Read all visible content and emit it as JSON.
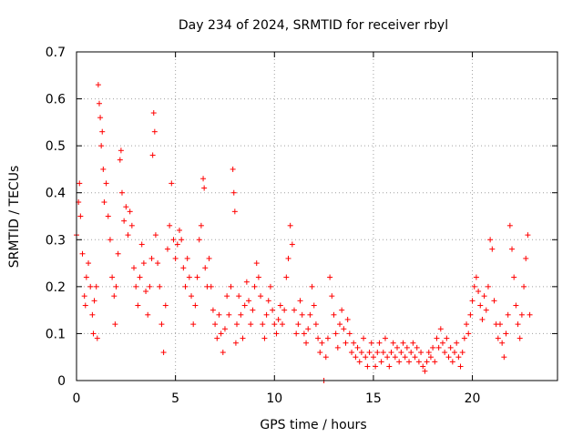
{
  "chart_data": {
    "type": "scatter",
    "title": "Day 234 of 2024, SRMTID for receiver rbyl",
    "xlabel": "GPS time / hours",
    "ylabel": "SRMTID / TECUs",
    "xlim": [
      0,
      24.3
    ],
    "ylim": [
      0,
      0.7
    ],
    "xticks": [
      0,
      5,
      10,
      15,
      20
    ],
    "xtick_labels": [
      "0",
      "5",
      "10",
      "15",
      "20"
    ],
    "yticks": [
      0,
      0.1,
      0.2,
      0.3,
      0.4,
      0.5,
      0.6,
      0.7
    ],
    "ytick_labels": [
      "0",
      "0.1",
      "0.2",
      "0.3",
      "0.4",
      "0.5",
      "0.6",
      "0.7"
    ],
    "grid": true,
    "marker": "+",
    "color": "#ff0000",
    "series": [
      {
        "name": "SRMTID",
        "points": [
          [
            0.0,
            0.31
          ],
          [
            0.1,
            0.38
          ],
          [
            0.15,
            0.42
          ],
          [
            0.2,
            0.35
          ],
          [
            0.3,
            0.27
          ],
          [
            0.4,
            0.18
          ],
          [
            0.45,
            0.16
          ],
          [
            0.5,
            0.22
          ],
          [
            0.6,
            0.25
          ],
          [
            0.7,
            0.2
          ],
          [
            0.8,
            0.14
          ],
          [
            0.85,
            0.1
          ],
          [
            0.9,
            0.17
          ],
          [
            1.0,
            0.2
          ],
          [
            1.05,
            0.09
          ],
          [
            1.1,
            0.63
          ],
          [
            1.15,
            0.59
          ],
          [
            1.2,
            0.56
          ],
          [
            1.25,
            0.5
          ],
          [
            1.3,
            0.53
          ],
          [
            1.35,
            0.45
          ],
          [
            1.4,
            0.38
          ],
          [
            1.5,
            0.42
          ],
          [
            1.6,
            0.35
          ],
          [
            1.7,
            0.3
          ],
          [
            1.8,
            0.22
          ],
          [
            1.9,
            0.18
          ],
          [
            1.95,
            0.12
          ],
          [
            2.0,
            0.2
          ],
          [
            2.1,
            0.27
          ],
          [
            2.2,
            0.47
          ],
          [
            2.25,
            0.49
          ],
          [
            2.3,
            0.4
          ],
          [
            2.4,
            0.34
          ],
          [
            2.5,
            0.37
          ],
          [
            2.6,
            0.31
          ],
          [
            2.7,
            0.36
          ],
          [
            2.8,
            0.33
          ],
          [
            2.9,
            0.24
          ],
          [
            3.0,
            0.2
          ],
          [
            3.1,
            0.16
          ],
          [
            3.2,
            0.22
          ],
          [
            3.3,
            0.29
          ],
          [
            3.4,
            0.25
          ],
          [
            3.5,
            0.19
          ],
          [
            3.6,
            0.14
          ],
          [
            3.7,
            0.2
          ],
          [
            3.8,
            0.26
          ],
          [
            3.85,
            0.48
          ],
          [
            3.9,
            0.57
          ],
          [
            3.95,
            0.53
          ],
          [
            4.0,
            0.31
          ],
          [
            4.1,
            0.25
          ],
          [
            4.2,
            0.2
          ],
          [
            4.3,
            0.12
          ],
          [
            4.4,
            0.06
          ],
          [
            4.5,
            0.16
          ],
          [
            4.6,
            0.28
          ],
          [
            4.7,
            0.33
          ],
          [
            4.8,
            0.42
          ],
          [
            4.9,
            0.3
          ],
          [
            5.0,
            0.26
          ],
          [
            5.1,
            0.29
          ],
          [
            5.2,
            0.32
          ],
          [
            5.3,
            0.3
          ],
          [
            5.4,
            0.24
          ],
          [
            5.5,
            0.2
          ],
          [
            5.6,
            0.26
          ],
          [
            5.7,
            0.22
          ],
          [
            5.8,
            0.18
          ],
          [
            5.9,
            0.12
          ],
          [
            6.0,
            0.16
          ],
          [
            6.1,
            0.22
          ],
          [
            6.2,
            0.3
          ],
          [
            6.3,
            0.33
          ],
          [
            6.4,
            0.43
          ],
          [
            6.45,
            0.41
          ],
          [
            6.5,
            0.24
          ],
          [
            6.6,
            0.2
          ],
          [
            6.7,
            0.26
          ],
          [
            6.8,
            0.2
          ],
          [
            6.9,
            0.15
          ],
          [
            7.0,
            0.12
          ],
          [
            7.1,
            0.09
          ],
          [
            7.2,
            0.14
          ],
          [
            7.3,
            0.1
          ],
          [
            7.4,
            0.06
          ],
          [
            7.5,
            0.11
          ],
          [
            7.6,
            0.18
          ],
          [
            7.7,
            0.14
          ],
          [
            7.8,
            0.2
          ],
          [
            7.9,
            0.45
          ],
          [
            7.95,
            0.4
          ],
          [
            8.0,
            0.36
          ],
          [
            8.05,
            0.08
          ],
          [
            8.1,
            0.12
          ],
          [
            8.2,
            0.18
          ],
          [
            8.3,
            0.14
          ],
          [
            8.4,
            0.09
          ],
          [
            8.5,
            0.16
          ],
          [
            8.6,
            0.21
          ],
          [
            8.7,
            0.17
          ],
          [
            8.8,
            0.12
          ],
          [
            8.9,
            0.15
          ],
          [
            9.0,
            0.2
          ],
          [
            9.1,
            0.25
          ],
          [
            9.2,
            0.22
          ],
          [
            9.3,
            0.18
          ],
          [
            9.4,
            0.12
          ],
          [
            9.5,
            0.09
          ],
          [
            9.6,
            0.14
          ],
          [
            9.7,
            0.17
          ],
          [
            9.8,
            0.2
          ],
          [
            9.9,
            0.15
          ],
          [
            10.0,
            0.12
          ],
          [
            10.1,
            0.1
          ],
          [
            10.2,
            0.13
          ],
          [
            10.3,
            0.16
          ],
          [
            10.4,
            0.12
          ],
          [
            10.5,
            0.15
          ],
          [
            10.6,
            0.22
          ],
          [
            10.7,
            0.26
          ],
          [
            10.8,
            0.33
          ],
          [
            10.9,
            0.29
          ],
          [
            11.0,
            0.15
          ],
          [
            11.1,
            0.1
          ],
          [
            11.2,
            0.12
          ],
          [
            11.3,
            0.17
          ],
          [
            11.4,
            0.14
          ],
          [
            11.5,
            0.1
          ],
          [
            11.6,
            0.08
          ],
          [
            11.7,
            0.11
          ],
          [
            11.8,
            0.14
          ],
          [
            11.9,
            0.2
          ],
          [
            12.0,
            0.16
          ],
          [
            12.1,
            0.12
          ],
          [
            12.2,
            0.09
          ],
          [
            12.3,
            0.06
          ],
          [
            12.4,
            0.08
          ],
          [
            12.5,
            0.0
          ],
          [
            12.6,
            0.05
          ],
          [
            12.7,
            0.09
          ],
          [
            12.8,
            0.22
          ],
          [
            12.9,
            0.18
          ],
          [
            13.0,
            0.14
          ],
          [
            13.1,
            0.1
          ],
          [
            13.2,
            0.07
          ],
          [
            13.3,
            0.12
          ],
          [
            13.4,
            0.15
          ],
          [
            13.5,
            0.11
          ],
          [
            13.6,
            0.08
          ],
          [
            13.7,
            0.13
          ],
          [
            13.8,
            0.1
          ],
          [
            13.9,
            0.06
          ],
          [
            14.0,
            0.08
          ],
          [
            14.1,
            0.05
          ],
          [
            14.2,
            0.07
          ],
          [
            14.3,
            0.04
          ],
          [
            14.4,
            0.06
          ],
          [
            14.5,
            0.09
          ],
          [
            14.6,
            0.05
          ],
          [
            14.7,
            0.03
          ],
          [
            14.8,
            0.06
          ],
          [
            14.9,
            0.08
          ],
          [
            15.0,
            0.05
          ],
          [
            15.1,
            0.03
          ],
          [
            15.2,
            0.06
          ],
          [
            15.3,
            0.08
          ],
          [
            15.4,
            0.04
          ],
          [
            15.5,
            0.06
          ],
          [
            15.6,
            0.09
          ],
          [
            15.7,
            0.05
          ],
          [
            15.8,
            0.03
          ],
          [
            15.9,
            0.06
          ],
          [
            16.0,
            0.08
          ],
          [
            16.1,
            0.05
          ],
          [
            16.2,
            0.07
          ],
          [
            16.3,
            0.04
          ],
          [
            16.4,
            0.06
          ],
          [
            16.5,
            0.08
          ],
          [
            16.6,
            0.05
          ],
          [
            16.7,
            0.07
          ],
          [
            16.8,
            0.04
          ],
          [
            16.9,
            0.06
          ],
          [
            17.0,
            0.08
          ],
          [
            17.1,
            0.05
          ],
          [
            17.2,
            0.07
          ],
          [
            17.3,
            0.04
          ],
          [
            17.4,
            0.06
          ],
          [
            17.5,
            0.03
          ],
          [
            17.6,
            0.02
          ],
          [
            17.7,
            0.04
          ],
          [
            17.8,
            0.06
          ],
          [
            17.9,
            0.05
          ],
          [
            18.0,
            0.07
          ],
          [
            18.1,
            0.04
          ],
          [
            18.2,
            0.09
          ],
          [
            18.3,
            0.07
          ],
          [
            18.4,
            0.11
          ],
          [
            18.5,
            0.08
          ],
          [
            18.6,
            0.06
          ],
          [
            18.7,
            0.09
          ],
          [
            18.8,
            0.05
          ],
          [
            18.9,
            0.07
          ],
          [
            19.0,
            0.04
          ],
          [
            19.1,
            0.06
          ],
          [
            19.2,
            0.08
          ],
          [
            19.3,
            0.05
          ],
          [
            19.4,
            0.03
          ],
          [
            19.5,
            0.06
          ],
          [
            19.6,
            0.09
          ],
          [
            19.7,
            0.12
          ],
          [
            19.8,
            0.1
          ],
          [
            19.9,
            0.14
          ],
          [
            20.0,
            0.17
          ],
          [
            20.1,
            0.2
          ],
          [
            20.2,
            0.22
          ],
          [
            20.3,
            0.19
          ],
          [
            20.4,
            0.16
          ],
          [
            20.5,
            0.13
          ],
          [
            20.6,
            0.18
          ],
          [
            20.7,
            0.15
          ],
          [
            20.8,
            0.2
          ],
          [
            20.9,
            0.3
          ],
          [
            21.0,
            0.28
          ],
          [
            21.1,
            0.17
          ],
          [
            21.2,
            0.12
          ],
          [
            21.3,
            0.09
          ],
          [
            21.4,
            0.12
          ],
          [
            21.5,
            0.08
          ],
          [
            21.6,
            0.05
          ],
          [
            21.7,
            0.1
          ],
          [
            21.8,
            0.14
          ],
          [
            21.9,
            0.33
          ],
          [
            22.0,
            0.28
          ],
          [
            22.1,
            0.22
          ],
          [
            22.2,
            0.16
          ],
          [
            22.3,
            0.12
          ],
          [
            22.4,
            0.09
          ],
          [
            22.5,
            0.14
          ],
          [
            22.6,
            0.2
          ],
          [
            22.7,
            0.26
          ],
          [
            22.8,
            0.31
          ],
          [
            22.9,
            0.14
          ]
        ]
      }
    ]
  }
}
